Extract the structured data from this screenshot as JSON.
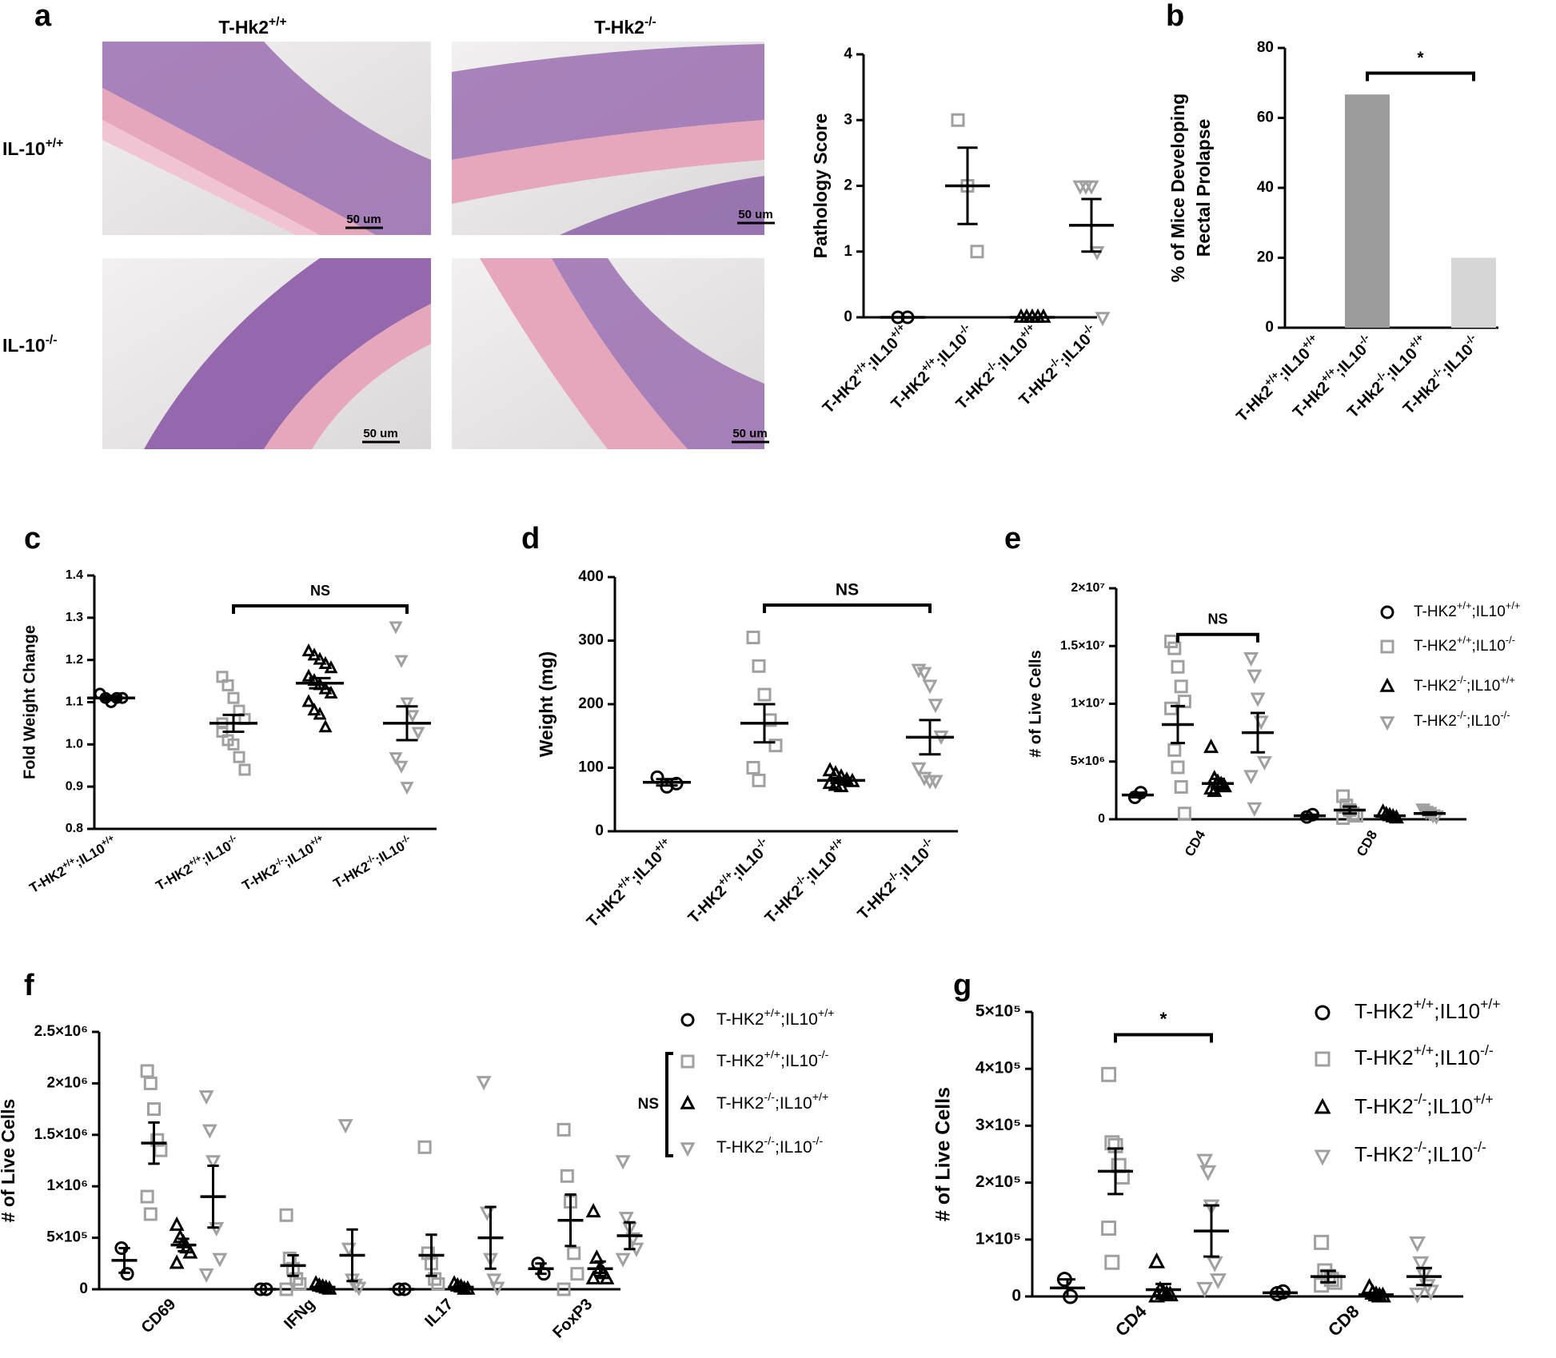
{
  "panel_labels": [
    "a",
    "b",
    "c",
    "d",
    "e",
    "f",
    "g"
  ],
  "histology": {
    "columns": [
      "T-Hk2+/+",
      "T-Hk2-/-"
    ],
    "rows": [
      "IL-10+/+",
      "IL-10-/-"
    ],
    "scale_bars": [
      "50 um",
      "50 um",
      "50 um",
      "50 um"
    ]
  },
  "chart_data": [
    {
      "type": "dot",
      "ylabel": "Pathology Score",
      "categories": [
        "T-HK2+/+;IL10+/+",
        "T-HK2+/+;IL10-/-",
        "T-HK2-/-;IL10+/+",
        "T-HK2-/-;IL10-/-"
      ],
      "colors": [
        "#000000",
        "#a0a0a0",
        "#000000",
        "#a0a0a0"
      ],
      "markers": [
        "circle",
        "square",
        "triangle",
        "tridown"
      ],
      "values": [
        [
          0,
          0
        ],
        [
          3,
          2,
          1
        ],
        [
          0,
          0,
          0,
          0,
          0
        ],
        [
          2,
          2,
          2,
          1,
          0
        ]
      ],
      "means": [
        0,
        2,
        0,
        1.4
      ],
      "sems": [
        0,
        0.58,
        0,
        0.4
      ],
      "ylim": [
        0,
        4
      ],
      "yticks": [
        0,
        1,
        2,
        3,
        4
      ]
    },
    {
      "type": "bar",
      "ylabel": [
        "% of Mice Developing",
        "Rectal Prolapse"
      ],
      "categories": [
        "T-Hk2+/+;IL10+/+",
        "T-Hk2+/+;IL10-/-",
        "T-Hk2-/-;IL10+/+",
        "T-Hk2-/-;IL10-/-"
      ],
      "values": [
        0,
        66.7,
        0,
        20
      ],
      "colors": [
        "#9b9b9b",
        "#9b9b9b",
        "#d6d6d6",
        "#d6d6d6"
      ],
      "ylim": [
        0,
        80
      ],
      "yticks": [
        0,
        20,
        40,
        60,
        80
      ],
      "annotations": [
        {
          "text": "*",
          "between": [
            "T-Hk2+/+;IL10-/-",
            "T-Hk2-/-;IL10-/-"
          ]
        }
      ]
    },
    {
      "type": "dot",
      "ylabel": "Fold Weight Change",
      "categories": [
        "T-HK2+/+;IL10+/+",
        "T-HK2+/+;IL10-/-",
        "T-HK2-/-;IL10+/+",
        "T-HK2-/-;IL10-/-"
      ],
      "colors": [
        "#000000",
        "#a0a0a0",
        "#000000",
        "#a0a0a0"
      ],
      "markers": [
        "circle",
        "square",
        "triangle",
        "tridown"
      ],
      "values": [
        [
          1.12,
          1.11,
          1.1,
          1.11,
          1.11
        ],
        [
          1.16,
          1.14,
          1.11,
          1.08,
          1.06,
          1.03,
          1.01,
          1.0,
          0.97,
          0.94,
          1.05
        ],
        [
          1.22,
          1.21,
          1.2,
          1.19,
          1.18,
          1.16,
          1.15,
          1.14,
          1.13,
          1.12,
          1.1,
          1.08,
          1.07,
          1.04
        ],
        [
          1.28,
          1.2,
          1.1,
          1.07,
          1.03,
          0.97,
          0.95,
          0.9
        ]
      ],
      "means": [
        1.11,
        1.05,
        1.145,
        1.05
      ],
      "sems": [
        0.005,
        0.02,
        0.012,
        0.04
      ],
      "ylim": [
        0.8,
        1.4
      ],
      "yticks": [
        0.8,
        0.9,
        {
          "value": 1,
          "label": "1.0"
        },
        1.1,
        1.2,
        1.3,
        1.4
      ],
      "annotations": [
        {
          "text": "NS",
          "between": [
            "T-HK2+/+;IL10-/-",
            "T-HK2-/-;IL10-/-"
          ]
        }
      ]
    },
    {
      "type": "dot",
      "ylabel": "Weight (mg)",
      "categories": [
        "T-HK2+/+;IL10+/+",
        "T-HK2+/+;IL10-/-",
        "T-HK2-/-;IL10+/+",
        "T-HK2-/-;IL10-/-"
      ],
      "colors": [
        "#000000",
        "#a0a0a0",
        "#000000",
        "#a0a0a0"
      ],
      "markers": [
        "circle",
        "square",
        "triangle",
        "tridown"
      ],
      "values": [
        [
          85,
          70,
          75
        ],
        [
          305,
          260,
          215,
          175,
          135,
          100,
          80
        ],
        [
          95,
          90,
          85,
          80,
          78,
          75,
          72,
          70
        ],
        [
          255,
          250,
          230,
          200,
          150,
          100,
          85,
          80,
          80
        ]
      ],
      "means": [
        77,
        170,
        80,
        148
      ],
      "sems": [
        5,
        30,
        4,
        27
      ],
      "ylim": [
        0,
        400
      ],
      "yticks": [
        0,
        100,
        200,
        300,
        400
      ],
      "annotations": [
        {
          "text": "NS",
          "between": [
            "T-HK2+/+;IL10-/-",
            "T-HK2-/-;IL10-/-"
          ]
        }
      ]
    },
    {
      "type": "grouped-dot",
      "ylabel": "# of Live Cells",
      "categories": [
        "CD4",
        "CD8"
      ],
      "series": [
        {
          "name": "T-HK2+/+;IL10+/+",
          "color": "#000000",
          "marker": "circle",
          "values": [
            [
              1900000,
              2300000
            ],
            [
              200000,
              400000
            ]
          ],
          "means": [
            2100000,
            300000
          ],
          "sems": [
            200000,
            100000
          ]
        },
        {
          "name": "T-HK2+/+;IL10-/-",
          "color": "#a0a0a0",
          "marker": "square",
          "values": [
            [
              15400000,
              14800000,
              13200000,
              11500000,
              10200000,
              9600000,
              6000000,
              4500000,
              2800000,
              500000
            ],
            [
              2000000,
              1200000,
              800000,
              500000,
              300000,
              100000
            ]
          ],
          "means": [
            8200000,
            800000
          ],
          "sems": [
            1600000,
            300000
          ]
        },
        {
          "name": "T-HK2-/-;IL10+/+",
          "color": "#000000",
          "marker": "triangle",
          "values": [
            [
              6200000,
              3500000,
              3200000,
              3000000,
              2800000,
              2600000,
              2400000
            ],
            [
              600000,
              400000,
              300000,
              200000,
              100000
            ]
          ],
          "means": [
            3100000,
            300000
          ],
          "sems": [
            400000,
            100000
          ]
        },
        {
          "name": "T-HK2-/-;IL10-/-",
          "color": "#a0a0a0",
          "marker": "tridown",
          "values": [
            [
              14000000,
              12500000,
              10500000,
              8500000,
              5000000,
              3800000,
              1000000
            ],
            [
              900000,
              700000,
              600000,
              400000,
              300000
            ]
          ],
          "means": [
            7500000,
            500000
          ],
          "sems": [
            1700000,
            100000
          ]
        }
      ],
      "ylim": [
        0,
        20000000
      ],
      "yticks": [
        0,
        {
          "value": 5000000,
          "label": "5×10⁶"
        },
        {
          "value": 10000000,
          "label": "1×10⁷"
        },
        {
          "value": 15000000,
          "label": "1.5×10⁷"
        },
        {
          "value": 20000000,
          "label": "2×10⁷"
        }
      ],
      "annotations": [
        {
          "text": "NS",
          "category": "CD4",
          "between": [
            "T-HK2+/+;IL10-/-",
            "T-HK2-/-;IL10-/-"
          ]
        }
      ]
    },
    {
      "type": "grouped-dot",
      "ylabel": "# of Live Cells",
      "categories": [
        "CD69",
        "IFNg",
        "IL17",
        "FoxP3"
      ],
      "series": [
        {
          "name": "T-HK2+/+;IL10+/+",
          "color": "#000000",
          "marker": "circle",
          "values": [
            [
              400000,
              150000
            ],
            [
              0,
              0
            ],
            [
              0,
              0
            ],
            [
              250000,
              150000
            ]
          ],
          "means": [
            280000,
            0,
            0,
            200000
          ],
          "sems": [
            120000,
            0,
            0,
            50000
          ]
        },
        {
          "name": "T-HK2+/+;IL10-/-",
          "color": "#a0a0a0",
          "marker": "square",
          "values": [
            [
              2120000,
              2000000,
              1750000,
              1450000,
              1350000,
              900000,
              730000
            ],
            [
              720000,
              300000,
              200000,
              100000,
              50000,
              0
            ],
            [
              1380000,
              350000,
              250000,
              100000,
              50000
            ],
            [
              1550000,
              1100000,
              850000,
              350000,
              150000,
              0
            ]
          ],
          "means": [
            1420000,
            230000,
            330000,
            670000
          ],
          "sems": [
            200000,
            100000,
            200000,
            250000
          ]
        },
        {
          "name": "T-HK2-/-;IL10+/+",
          "color": "#000000",
          "marker": "triangle",
          "values": [
            [
              620000,
              500000,
              450000,
              400000,
              350000,
              250000
            ],
            [
              50000,
              30000,
              20000,
              10000,
              0
            ],
            [
              50000,
              30000,
              20000,
              0,
              0
            ],
            [
              750000,
              300000,
              200000,
              150000,
              100000,
              100000
            ]
          ],
          "means": [
            430000,
            20000,
            20000,
            200000
          ],
          "sems": [
            60000,
            10000,
            10000,
            70000
          ]
        },
        {
          "name": "T-HK2-/-;IL10-/-",
          "color": "#a0a0a0",
          "marker": "tridown",
          "values": [
            [
              1880000,
              1550000,
              1250000,
              600000,
              300000,
              150000
            ],
            [
              1600000,
              400000,
              100000,
              50000,
              20000
            ],
            [
              2020000,
              750000,
              300000,
              100000,
              20000
            ],
            [
              1250000,
              700000,
              600000,
              500000,
              400000,
              300000
            ]
          ],
          "means": [
            900000,
            330000,
            500000,
            520000
          ],
          "sems": [
            300000,
            250000,
            300000,
            130000
          ]
        }
      ],
      "ylim": [
        0,
        2500000
      ],
      "yticks": [
        0,
        {
          "value": 500000,
          "label": "5×10⁵"
        },
        {
          "value": 1000000,
          "label": "1×10⁶"
        },
        {
          "value": 1500000,
          "label": "1.5×10⁶"
        },
        {
          "value": 2000000,
          "label": "2×10⁶"
        },
        {
          "value": 2500000,
          "label": "2.5×10⁶"
        }
      ],
      "annotations": [
        {
          "text": "NS",
          "between": [
            "T-HK2+/+;IL10-/-",
            "T-HK2-/-;IL10-/-"
          ]
        }
      ]
    },
    {
      "type": "grouped-dot",
      "ylabel": "# of Live Cells",
      "categories": [
        "CD4",
        "CD8"
      ],
      "series": [
        {
          "name": "T-HK2+/+;IL10+/+",
          "color": "#000000",
          "marker": "circle",
          "values": [
            [
              30000,
              0
            ],
            [
              5000,
              8000
            ]
          ],
          "means": [
            15000,
            6500
          ],
          "sems": [
            15000,
            1500
          ]
        },
        {
          "name": "T-HK2+/+;IL10-/-",
          "color": "#a0a0a0",
          "marker": "square",
          "values": [
            [
              390000,
              270000,
              265000,
              230000,
              210000,
              120000,
              60000
            ],
            [
              95000,
              45000,
              35000,
              30000,
              25000,
              20000
            ]
          ],
          "means": [
            220000,
            35000
          ],
          "sems": [
            40000,
            10000
          ]
        },
        {
          "name": "T-HK2-/-;IL10+/+",
          "color": "#000000",
          "marker": "triangle",
          "values": [
            [
              60000,
              10000,
              5000,
              3000,
              2000,
              0
            ],
            [
              15000,
              5000,
              2000,
              0,
              0
            ]
          ],
          "means": [
            12000,
            3000
          ],
          "sems": [
            10000,
            3000
          ]
        },
        {
          "name": "T-HK2-/-;IL10-/-",
          "color": "#a0a0a0",
          "marker": "tridown",
          "values": [
            [
              240000,
              220000,
              160000,
              60000,
              30000,
              15000
            ],
            [
              95000,
              60000,
              40000,
              20000,
              10000,
              5000
            ]
          ],
          "means": [
            115000,
            35000
          ],
          "sems": [
            45000,
            15000
          ]
        }
      ],
      "ylim": [
        0,
        500000
      ],
      "yticks": [
        0,
        {
          "value": 100000,
          "label": "1×10⁵"
        },
        {
          "value": 200000,
          "label": "2×10⁵"
        },
        {
          "value": 300000,
          "label": "3×10⁵"
        },
        {
          "value": 400000,
          "label": "4×10⁵"
        },
        {
          "value": 500000,
          "label": "5×10⁵"
        }
      ],
      "annotations": [
        {
          "text": "*",
          "category": "CD4",
          "between": [
            "T-HK2+/+;IL10-/-",
            "T-HK2-/-;IL10-/-"
          ]
        }
      ]
    }
  ]
}
